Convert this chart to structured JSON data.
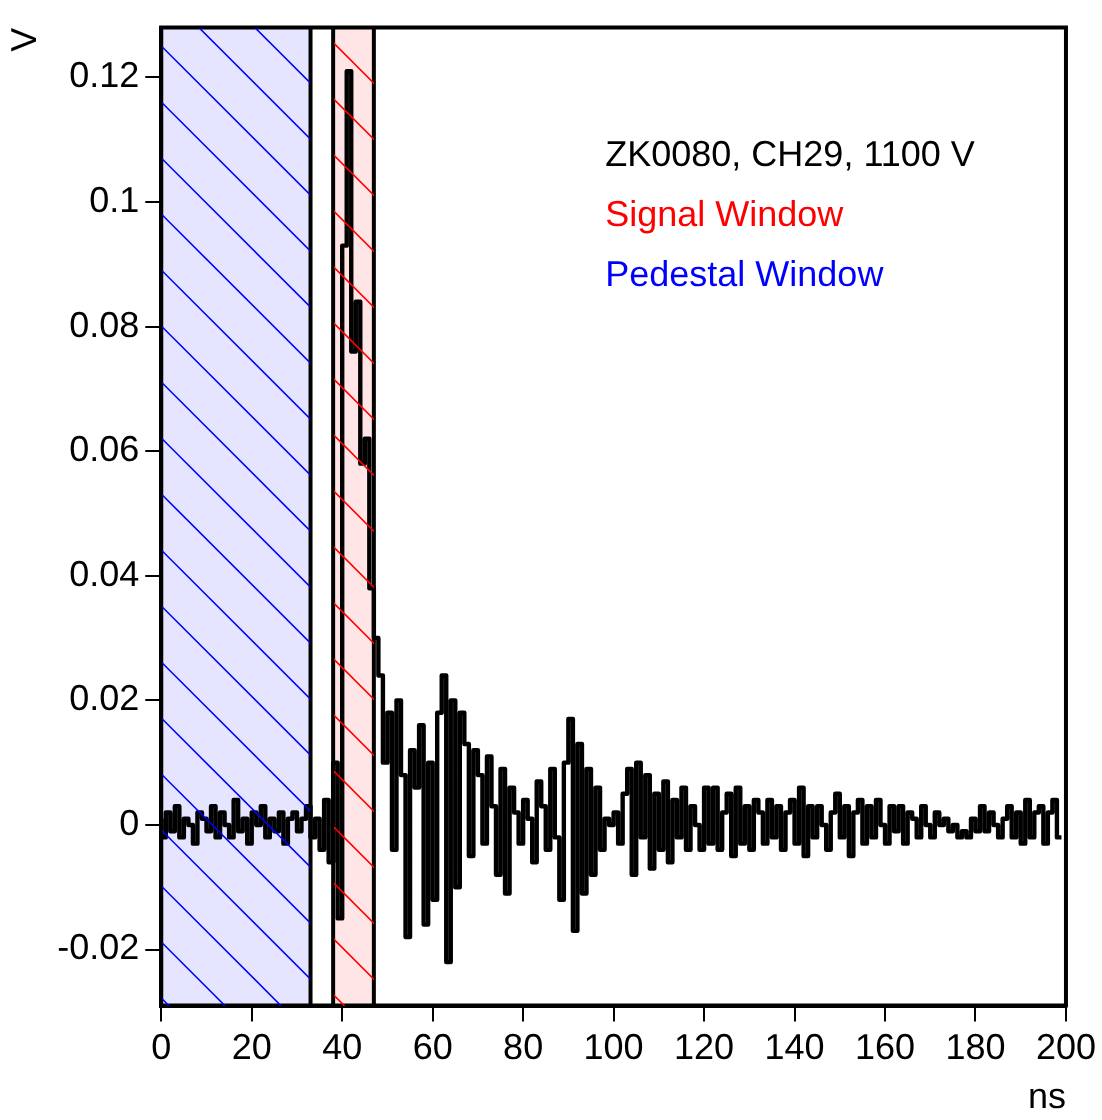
{
  "chart_data": {
    "type": "step",
    "xlabel": "ns",
    "ylabel": "V",
    "annotations": [
      "ZK0080, CH29, 1100 V"
    ],
    "x": [
      0,
      1,
      2,
      3,
      4,
      5,
      6,
      7,
      8,
      9,
      10,
      11,
      12,
      13,
      14,
      15,
      16,
      17,
      18,
      19,
      20,
      21,
      22,
      23,
      24,
      25,
      26,
      27,
      28,
      29,
      30,
      31,
      32,
      33,
      34,
      35,
      36,
      37,
      38,
      39,
      40,
      41,
      42,
      43,
      44,
      45,
      46,
      47,
      48,
      49,
      50,
      51,
      52,
      53,
      54,
      55,
      56,
      57,
      58,
      59,
      60,
      61,
      62,
      63,
      64,
      65,
      66,
      67,
      68,
      69,
      70,
      71,
      72,
      73,
      74,
      75,
      76,
      77,
      78,
      79,
      80,
      81,
      82,
      83,
      84,
      85,
      86,
      87,
      88,
      89,
      90,
      91,
      92,
      93,
      94,
      95,
      96,
      97,
      98,
      99,
      100,
      101,
      102,
      103,
      104,
      105,
      106,
      107,
      108,
      109,
      110,
      111,
      112,
      113,
      114,
      115,
      116,
      117,
      118,
      119,
      120,
      121,
      122,
      123,
      124,
      125,
      126,
      127,
      128,
      129,
      130,
      131,
      132,
      133,
      134,
      135,
      136,
      137,
      138,
      139,
      140,
      141,
      142,
      143,
      144,
      145,
      146,
      147,
      148,
      149,
      150,
      151,
      152,
      153,
      154,
      155,
      156,
      157,
      158,
      159,
      160,
      161,
      162,
      163,
      164,
      165,
      166,
      167,
      168,
      169,
      170,
      171,
      172,
      173,
      174,
      175,
      176,
      177,
      178,
      179,
      180,
      181,
      182,
      183,
      184,
      185,
      186,
      187,
      188,
      189,
      190,
      191,
      192,
      193,
      194,
      195,
      196,
      197,
      198,
      199
    ],
    "series": [
      {
        "color": "#000000",
        "values": [
          0.001,
          -0.002,
          0.002,
          -0.001,
          0.003,
          -0.002,
          0.001,
          0.0,
          -0.003,
          0.002,
          0.001,
          -0.001,
          0.003,
          -0.002,
          0.002,
          0.0,
          -0.002,
          0.004,
          -0.001,
          0.001,
          -0.003,
          0.002,
          0.0,
          0.003,
          -0.002,
          0.001,
          -0.001,
          0.002,
          -0.003,
          0.001,
          0.002,
          -0.001,
          0.001,
          0.003,
          -0.002,
          0.001,
          -0.004,
          0.004,
          -0.006,
          0.01,
          -0.015,
          0.093,
          0.121,
          0.076,
          0.084,
          0.058,
          0.062,
          0.038,
          0.03,
          0.024,
          0.01,
          0.018,
          -0.004,
          0.02,
          0.008,
          -0.018,
          0.012,
          0.006,
          0.016,
          -0.016,
          0.01,
          -0.012,
          0.018,
          0.024,
          -0.022,
          0.02,
          -0.01,
          0.018,
          0.013,
          -0.005,
          0.012,
          0.008,
          -0.003,
          0.011,
          0.003,
          -0.008,
          0.009,
          -0.011,
          0.006,
          0.002,
          -0.003,
          0.004,
          0.001,
          -0.006,
          0.007,
          0.003,
          -0.004,
          0.009,
          -0.002,
          -0.012,
          0.01,
          0.017,
          -0.017,
          0.013,
          -0.011,
          0.009,
          -0.008,
          0.006,
          -0.004,
          0.001,
          0.0,
          0.002,
          -0.003,
          0.005,
          0.009,
          -0.008,
          0.01,
          -0.002,
          0.008,
          -0.007,
          0.005,
          -0.004,
          0.007,
          -0.006,
          0.004,
          -0.002,
          0.006,
          -0.004,
          0.003,
          0.0,
          -0.004,
          0.006,
          -0.003,
          0.006,
          -0.004,
          0.002,
          0.005,
          -0.005,
          0.006,
          -0.003,
          0.003,
          -0.004,
          0.004,
          0.002,
          -0.003,
          0.004,
          -0.002,
          0.003,
          -0.004,
          0.002,
          0.004,
          -0.003,
          0.006,
          -0.005,
          0.003,
          -0.002,
          0.003,
          0.0,
          -0.004,
          0.002,
          0.005,
          -0.002,
          0.003,
          -0.005,
          0.002,
          0.004,
          -0.003,
          0.003,
          -0.002,
          0.004,
          0.0,
          -0.003,
          0.003,
          -0.001,
          0.003,
          -0.003,
          0.002,
          0.001,
          -0.002,
          0.003,
          0.0,
          -0.002,
          0.002,
          0.0,
          0.001,
          -0.001,
          0.0,
          -0.002,
          -0.001,
          -0.002,
          0.001,
          -0.001,
          0.003,
          -0.001,
          0.002,
          0.0,
          -0.002,
          0.001,
          0.003,
          -0.002,
          0.002,
          -0.003,
          0.004,
          -0.002,
          0.002,
          0.003,
          -0.003,
          0.002,
          0.004,
          -0.002
        ]
      }
    ],
    "xlim": [
      0,
      200
    ],
    "xticks": [
      0,
      20,
      40,
      60,
      80,
      100,
      120,
      140,
      160,
      180,
      200
    ],
    "ylim": [
      -0.029,
      0.128
    ],
    "yticks": [
      -0.02,
      0,
      0.02,
      0.04,
      0.06,
      0.08,
      0.1,
      0.12
    ],
    "bands": [
      {
        "axis": "x",
        "from": 38,
        "to": 47,
        "label": "Signal Window",
        "color": "#ff0000"
      },
      {
        "axis": "x",
        "from": 0,
        "to": 33,
        "label": "Pedestal Window",
        "color": "#0000ff"
      }
    ],
    "ref_lines": [
      {
        "axis": "x",
        "value": 33,
        "color": "#000000"
      },
      {
        "axis": "x",
        "value": 38,
        "color": "#000000"
      },
      {
        "axis": "x",
        "value": 47,
        "color": "#000000"
      }
    ],
    "grid": false,
    "legend": false
  }
}
